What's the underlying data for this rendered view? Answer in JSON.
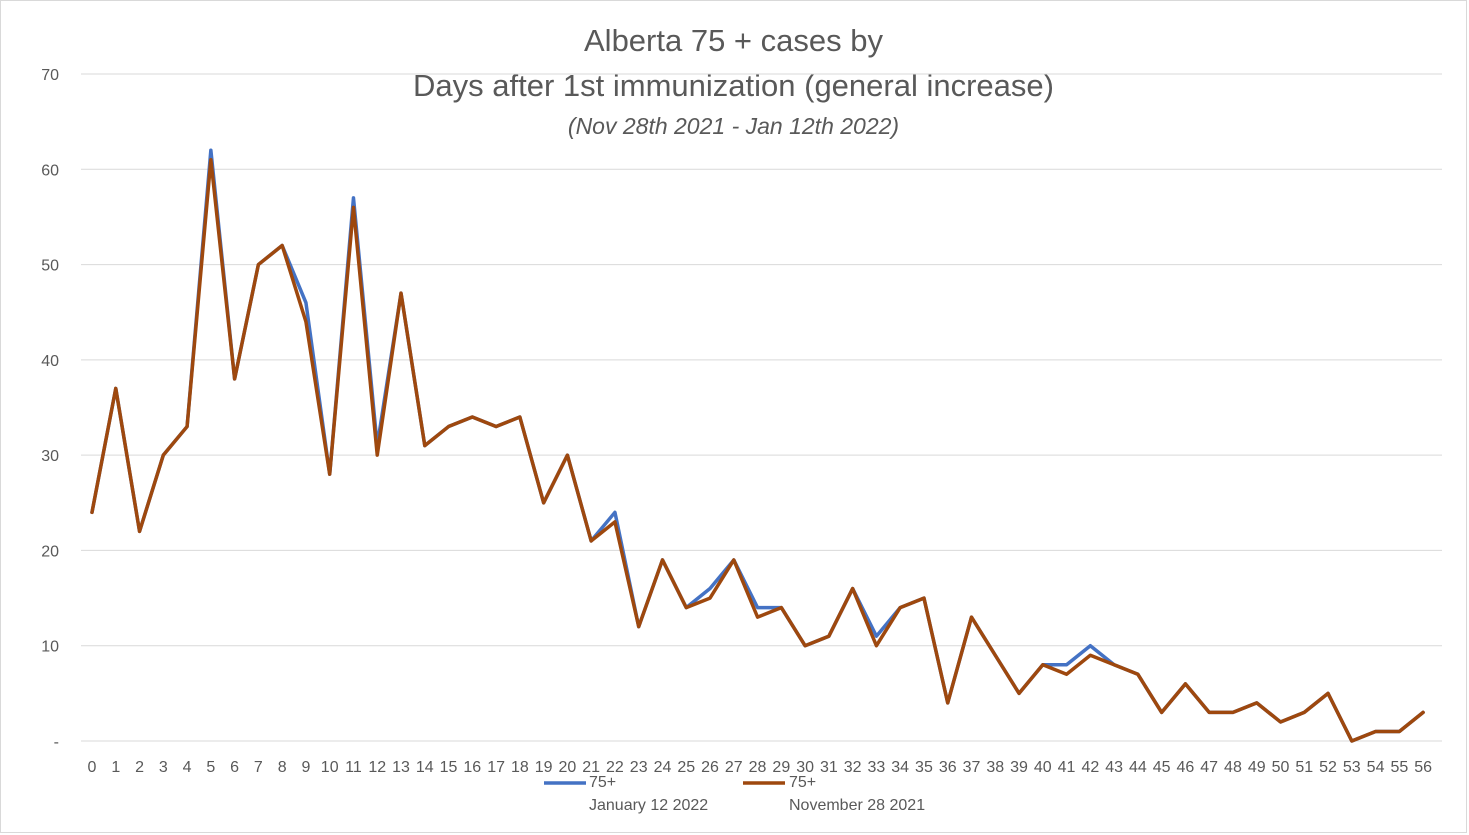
{
  "chart_data": {
    "type": "line",
    "title_line1": "Alberta 75 + cases by",
    "title_line2": "Days after 1st immunization (general increase)",
    "subtitle": "(Nov 28th 2021 - Jan 12th 2022)",
    "xlabel": "",
    "ylabel": "",
    "ylim": [
      0,
      70
    ],
    "yticks": [
      {
        "value": 0,
        "label": "-"
      },
      {
        "value": 10,
        "label": "10"
      },
      {
        "value": 20,
        "label": "20"
      },
      {
        "value": 30,
        "label": "30"
      },
      {
        "value": 40,
        "label": "40"
      },
      {
        "value": 50,
        "label": "50"
      },
      {
        "value": 60,
        "label": "60"
      },
      {
        "value": 70,
        "label": "70"
      }
    ],
    "grid": true,
    "legend_position": "bottom",
    "x": [
      0,
      1,
      2,
      3,
      4,
      5,
      6,
      7,
      8,
      9,
      10,
      11,
      12,
      13,
      14,
      15,
      16,
      17,
      18,
      19,
      20,
      21,
      22,
      23,
      24,
      25,
      26,
      27,
      28,
      29,
      30,
      31,
      32,
      33,
      34,
      35,
      36,
      37,
      38,
      39,
      40,
      41,
      42,
      43,
      44,
      45,
      46,
      47,
      48,
      49,
      50,
      51,
      52,
      53,
      54,
      55,
      56
    ],
    "series": [
      {
        "name": "75+",
        "legend_sub": "January 12 2022",
        "color": "#4472c4",
        "values": [
          24,
          37,
          22,
          30,
          33,
          62,
          38,
          50,
          52,
          46,
          28,
          57,
          31,
          47,
          31,
          33,
          34,
          33,
          34,
          25,
          30,
          21,
          24,
          12,
          19,
          14,
          16,
          19,
          14,
          14,
          10,
          11,
          16,
          11,
          14,
          15,
          4,
          13,
          9,
          5,
          8,
          8,
          10,
          8,
          7,
          3,
          6,
          3,
          3,
          4,
          2,
          3,
          5,
          0,
          1,
          1,
          3
        ]
      },
      {
        "name": "75+",
        "legend_sub": "November 28 2021",
        "color": "#9e480e",
        "values": [
          24,
          37,
          22,
          30,
          33,
          61,
          38,
          50,
          52,
          44,
          28,
          56,
          30,
          47,
          31,
          33,
          34,
          33,
          34,
          25,
          30,
          21,
          23,
          12,
          19,
          14,
          15,
          19,
          13,
          14,
          10,
          11,
          16,
          10,
          14,
          15,
          4,
          13,
          9,
          5,
          8,
          7,
          9,
          8,
          7,
          3,
          6,
          3,
          3,
          4,
          2,
          3,
          5,
          0,
          1,
          1,
          3
        ]
      }
    ]
  }
}
